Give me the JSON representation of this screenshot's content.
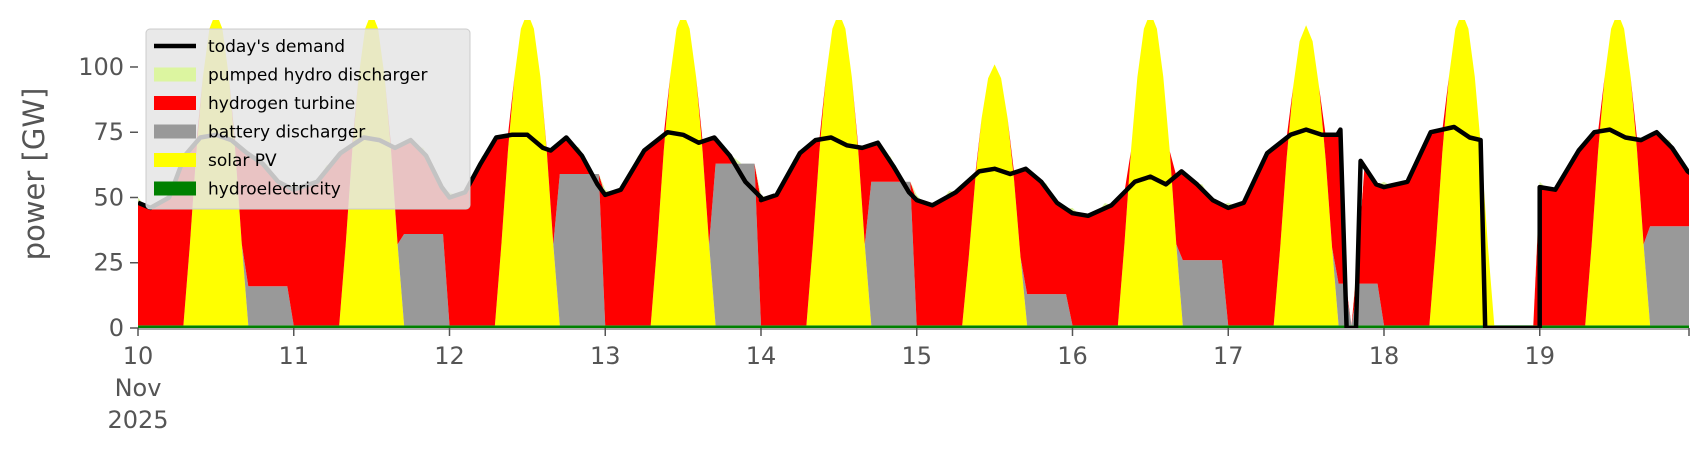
{
  "chart_data": {
    "type": "area",
    "title": "",
    "xlabel": "",
    "ylabel": "power [GW]",
    "x_range": [
      "2025-11-10",
      "2025-11-19T23:00"
    ],
    "ylim": [
      0,
      118
    ],
    "y_ticks": [
      0,
      25,
      50,
      75,
      100
    ],
    "x_ticks": [
      {
        "day": 10,
        "label": "10",
        "sub": [
          "Nov",
          "2025"
        ]
      },
      {
        "day": 11,
        "label": "11"
      },
      {
        "day": 12,
        "label": "12"
      },
      {
        "day": 13,
        "label": "13"
      },
      {
        "day": 14,
        "label": "14"
      },
      {
        "day": 15,
        "label": "15"
      },
      {
        "day": 16,
        "label": "16"
      },
      {
        "day": 17,
        "label": "17"
      },
      {
        "day": 18,
        "label": "18"
      },
      {
        "day": 19,
        "label": "19"
      }
    ],
    "grid": false,
    "legend_position": "upper-left",
    "stack_order": [
      "hydroelectricity",
      "solar PV",
      "battery discharger",
      "hydrogen turbine",
      "pumped hydro discharger"
    ],
    "series": [
      {
        "name": "today's demand",
        "kind": "line",
        "color": "#000000"
      },
      {
        "name": "pumped hydro discharger",
        "kind": "area",
        "color": "#dcf5a0"
      },
      {
        "name": "hydrogen turbine",
        "kind": "area",
        "color": "#ff0000"
      },
      {
        "name": "battery discharger",
        "kind": "area",
        "color": "#999999"
      },
      {
        "name": "solar PV",
        "kind": "area",
        "color": "#ffff00"
      },
      {
        "name": "hydroelectricity",
        "kind": "area",
        "color": "#008000"
      }
    ],
    "daily": [
      {
        "day": 10,
        "solar_peak": 120,
        "battery_night": 15,
        "h2_level": 48,
        "demand": [
          [
            0,
            48
          ],
          [
            0.08,
            46
          ],
          [
            0.2,
            50
          ],
          [
            0.3,
            66
          ],
          [
            0.4,
            73
          ],
          [
            0.5,
            74
          ],
          [
            0.6,
            72
          ],
          [
            0.7,
            67
          ],
          [
            0.8,
            63
          ],
          [
            0.9,
            56
          ],
          [
            1.0,
            53
          ]
        ]
      },
      {
        "day": 11,
        "solar_peak": 120,
        "battery_night": 35,
        "h2_level": 50,
        "demand": [
          [
            0,
            53
          ],
          [
            0.15,
            56
          ],
          [
            0.3,
            67
          ],
          [
            0.45,
            73
          ],
          [
            0.55,
            72
          ],
          [
            0.65,
            69
          ],
          [
            0.75,
            72
          ],
          [
            0.85,
            66
          ],
          [
            0.95,
            54
          ],
          [
            1.0,
            50
          ]
        ]
      },
      {
        "day": 12,
        "solar_peak": 120,
        "battery_night": 58,
        "h2_level": 50,
        "demand": [
          [
            0,
            50
          ],
          [
            0.1,
            52
          ],
          [
            0.2,
            63
          ],
          [
            0.3,
            73
          ],
          [
            0.4,
            74
          ],
          [
            0.5,
            74
          ],
          [
            0.6,
            69
          ],
          [
            0.65,
            68
          ],
          [
            0.75,
            73
          ],
          [
            0.85,
            66
          ],
          [
            0.95,
            55
          ],
          [
            1.0,
            51
          ]
        ]
      },
      {
        "day": 13,
        "solar_peak": 120,
        "battery_night": 62,
        "h2_level": 51,
        "demand": [
          [
            0,
            51
          ],
          [
            0.1,
            53
          ],
          [
            0.25,
            68
          ],
          [
            0.4,
            75
          ],
          [
            0.5,
            74
          ],
          [
            0.6,
            71
          ],
          [
            0.7,
            73
          ],
          [
            0.8,
            66
          ],
          [
            0.9,
            56
          ],
          [
            1.0,
            50
          ]
        ]
      },
      {
        "day": 14,
        "solar_peak": 120,
        "battery_night": 55,
        "h2_level": 49,
        "demand": [
          [
            0,
            49
          ],
          [
            0.1,
            51
          ],
          [
            0.25,
            67
          ],
          [
            0.35,
            72
          ],
          [
            0.45,
            73
          ],
          [
            0.55,
            70
          ],
          [
            0.65,
            69
          ],
          [
            0.75,
            71
          ],
          [
            0.85,
            62
          ],
          [
            0.95,
            52
          ],
          [
            1.0,
            49
          ]
        ]
      },
      {
        "day": 15,
        "solar_peak": 100,
        "battery_night": 12,
        "h2_level": 47,
        "demand": [
          [
            0,
            49
          ],
          [
            0.1,
            47
          ],
          [
            0.25,
            52
          ],
          [
            0.4,
            60
          ],
          [
            0.5,
            61
          ],
          [
            0.6,
            59
          ],
          [
            0.7,
            61
          ],
          [
            0.8,
            56
          ],
          [
            0.9,
            48
          ],
          [
            1.0,
            44
          ]
        ]
      },
      {
        "day": 16,
        "solar_peak": 120,
        "battery_night": 25,
        "h2_level": 44,
        "demand": [
          [
            0,
            44
          ],
          [
            0.1,
            43
          ],
          [
            0.25,
            47
          ],
          [
            0.4,
            56
          ],
          [
            0.5,
            58
          ],
          [
            0.6,
            55
          ],
          [
            0.7,
            60
          ],
          [
            0.8,
            55
          ],
          [
            0.9,
            49
          ],
          [
            1.0,
            46
          ]
        ]
      },
      {
        "day": 17,
        "solar_peak": 115,
        "battery_night": 16,
        "h2_level": 46,
        "demand": [
          [
            0,
            46
          ],
          [
            0.1,
            48
          ],
          [
            0.25,
            67
          ],
          [
            0.4,
            74
          ],
          [
            0.5,
            76
          ],
          [
            0.6,
            74
          ],
          [
            0.7,
            74
          ],
          [
            0.72,
            76
          ],
          [
            0.76,
            0
          ],
          [
            0.82,
            0
          ],
          [
            0.85,
            64
          ],
          [
            0.95,
            55
          ],
          [
            1.0,
            54
          ]
        ]
      },
      {
        "day": 18,
        "solar_peak": 120,
        "battery_night": 0,
        "h2_level": 54,
        "demand": [
          [
            0,
            54
          ],
          [
            0.15,
            56
          ],
          [
            0.3,
            75
          ],
          [
            0.45,
            77
          ],
          [
            0.55,
            73
          ],
          [
            0.62,
            72
          ],
          [
            0.65,
            0
          ],
          [
            1.0,
            0
          ]
        ]
      },
      {
        "day": 19,
        "solar_peak": 120,
        "battery_night": 38,
        "h2_level": 52,
        "demand": [
          [
            0,
            54
          ],
          [
            0.1,
            53
          ],
          [
            0.25,
            68
          ],
          [
            0.35,
            75
          ],
          [
            0.45,
            76
          ],
          [
            0.55,
            73
          ],
          [
            0.65,
            72
          ],
          [
            0.75,
            75
          ],
          [
            0.85,
            69
          ],
          [
            0.95,
            60
          ],
          [
            1.0,
            58
          ]
        ]
      }
    ],
    "hydroelectricity_level": 1
  }
}
